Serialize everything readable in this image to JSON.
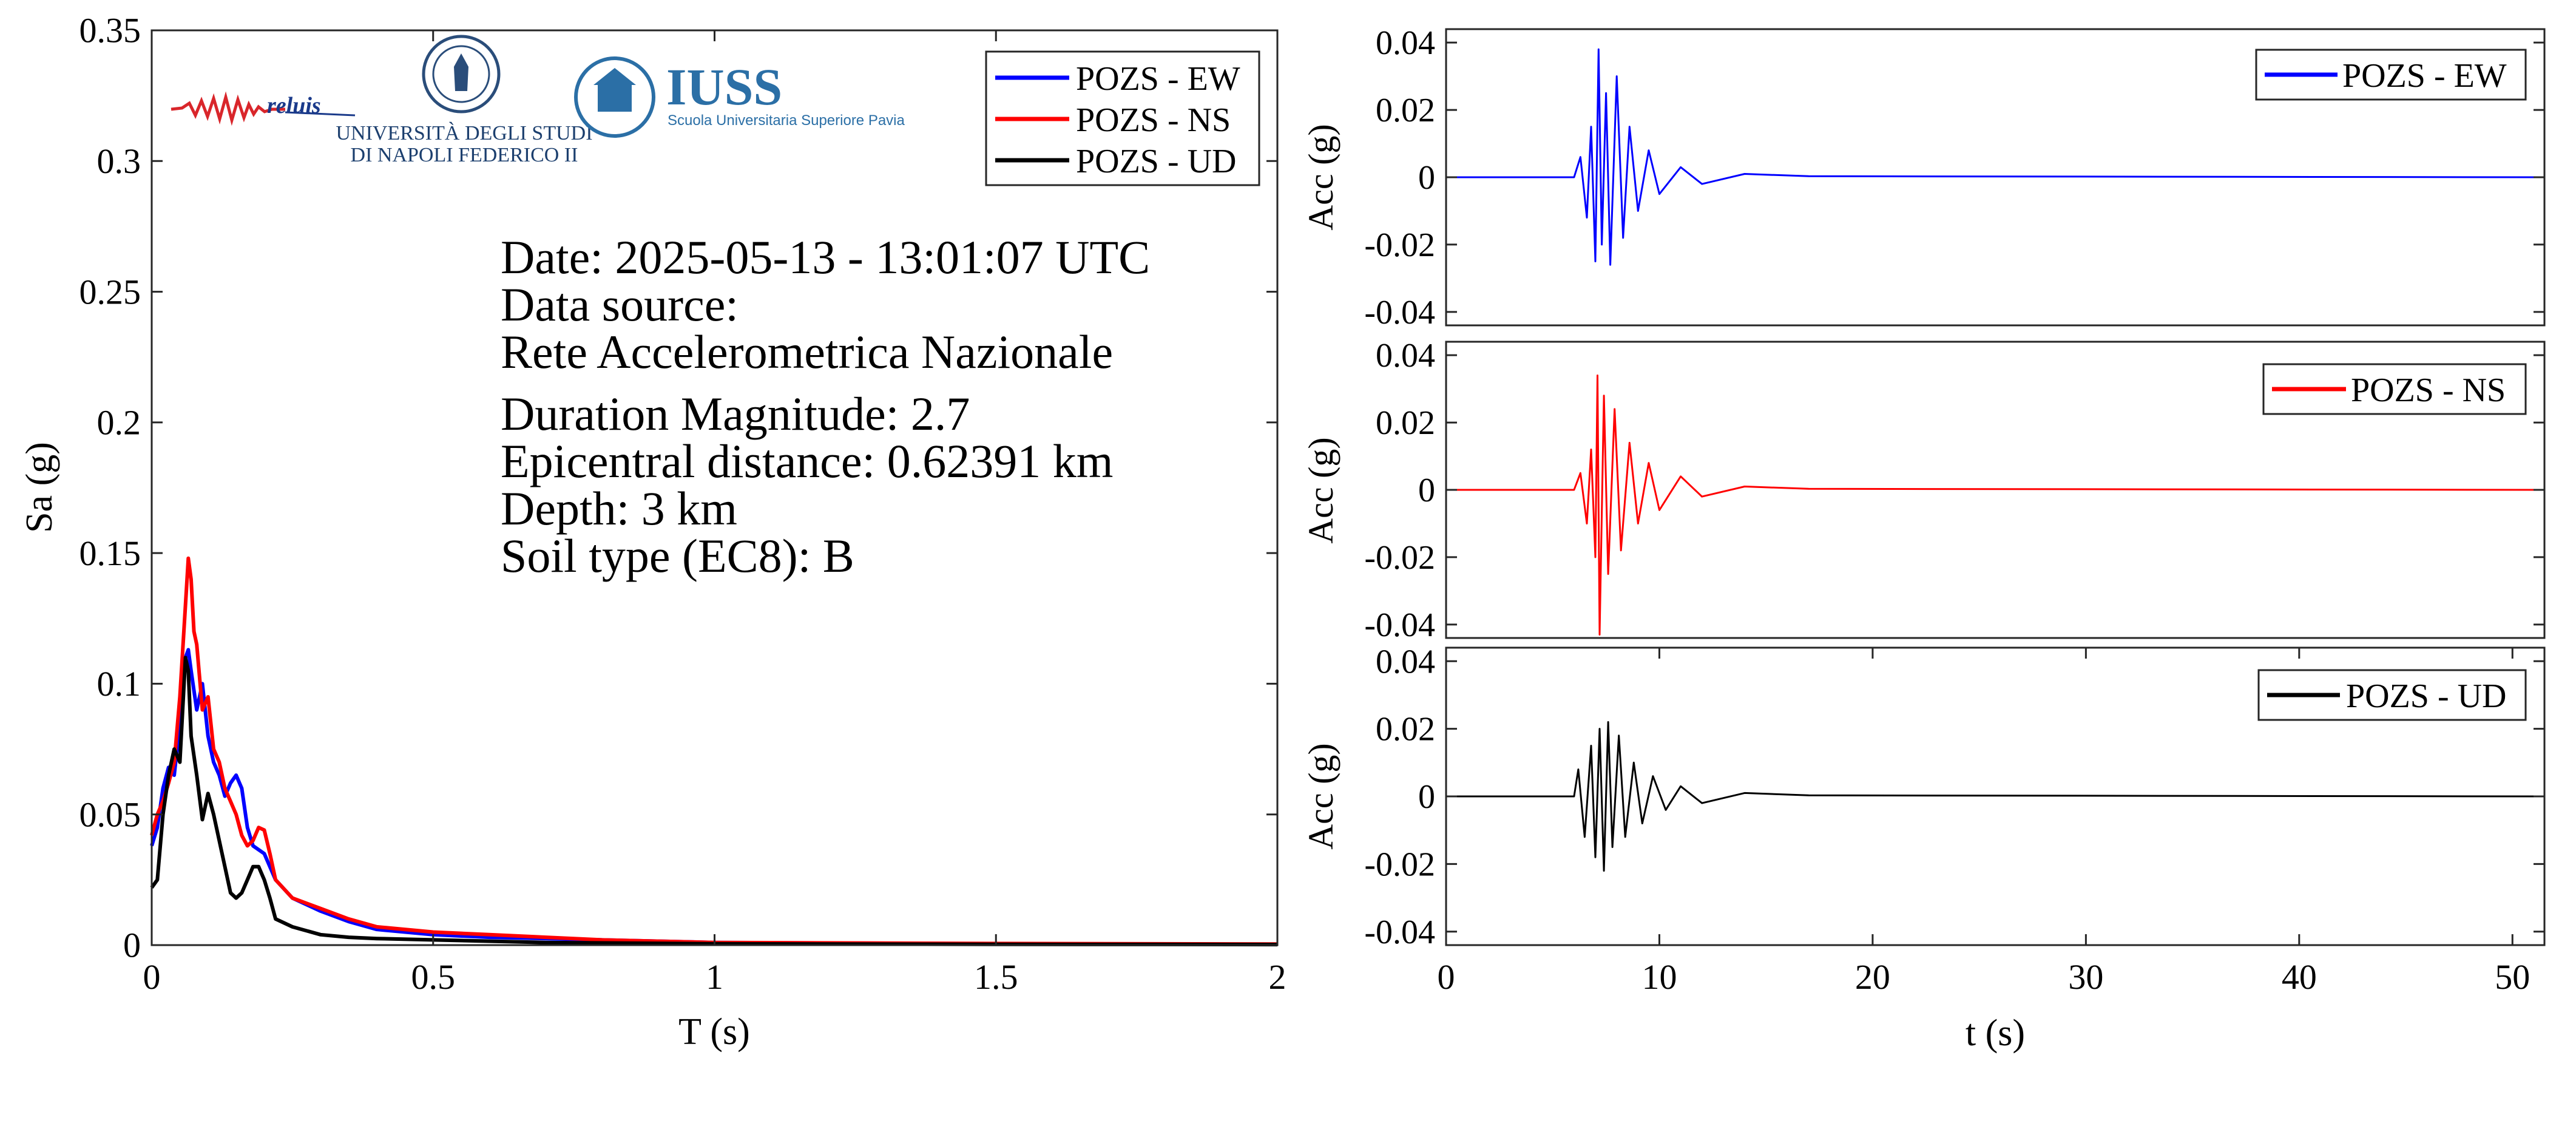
{
  "colors": {
    "ew": "#0000ff",
    "ns": "#ff0000",
    "ud": "#000000"
  },
  "logos": {
    "reluis": "reluis",
    "unina_line1": "UNIVERSITÀ DEGLI STUDI",
    "unina_line2": "DI NAPOLI FEDERICO II",
    "iuss_title": "IUSS",
    "iuss_subtitle": "Scuola Universitaria Superiore Pavia"
  },
  "info": [
    "Date: 2025-05-13 - 13:01:07 UTC",
    "Data source:",
    "Rete Accelerometrica Nazionale",
    "Duration Magnitude: 2.7",
    "Epicentral distance: 0.62391 km",
    "Depth: 3 km",
    "Soil type (EC8): B"
  ],
  "chart_data": [
    {
      "type": "line",
      "xlabel": "T (s)",
      "ylabel": "Sa (g)",
      "xlim": [
        0,
        2
      ],
      "ylim": [
        0,
        0.35
      ],
      "xticks": [
        0,
        0.5,
        1,
        1.5,
        2
      ],
      "xtick_labels": [
        "0",
        "0.5",
        "1",
        "1.5",
        "2"
      ],
      "yticks": [
        0,
        0.05,
        0.1,
        0.15,
        0.2,
        0.25,
        0.3,
        0.35
      ],
      "ytick_labels": [
        "0",
        "0.05",
        "0.1",
        "0.15",
        "0.2",
        "0.25",
        "0.3",
        "0.35"
      ],
      "legend_position": "top-right",
      "series": [
        {
          "name": "POZS - EW",
          "color": "#0000ff",
          "x": [
            0,
            0.01,
            0.02,
            0.03,
            0.04,
            0.05,
            0.06,
            0.065,
            0.07,
            0.08,
            0.09,
            0.1,
            0.11,
            0.12,
            0.13,
            0.14,
            0.15,
            0.16,
            0.17,
            0.18,
            0.2,
            0.22,
            0.25,
            0.3,
            0.35,
            0.4,
            0.5,
            0.6,
            0.8,
            1.0,
            1.5,
            2.0
          ],
          "y": [
            0.038,
            0.045,
            0.06,
            0.068,
            0.065,
            0.085,
            0.11,
            0.113,
            0.105,
            0.09,
            0.1,
            0.08,
            0.07,
            0.065,
            0.057,
            0.062,
            0.065,
            0.06,
            0.045,
            0.038,
            0.035,
            0.025,
            0.018,
            0.013,
            0.009,
            0.006,
            0.004,
            0.003,
            0.002,
            0.001,
            0.0005,
            0.0003
          ]
        },
        {
          "name": "POZS - NS",
          "color": "#ff0000",
          "x": [
            0,
            0.01,
            0.02,
            0.03,
            0.04,
            0.05,
            0.06,
            0.065,
            0.07,
            0.075,
            0.08,
            0.09,
            0.1,
            0.11,
            0.12,
            0.13,
            0.14,
            0.15,
            0.16,
            0.17,
            0.18,
            0.19,
            0.2,
            0.21,
            0.22,
            0.25,
            0.3,
            0.35,
            0.4,
            0.5,
            0.6,
            0.8,
            1.0,
            1.5,
            2.0
          ],
          "y": [
            0.042,
            0.05,
            0.055,
            0.062,
            0.07,
            0.095,
            0.13,
            0.148,
            0.14,
            0.12,
            0.115,
            0.09,
            0.095,
            0.075,
            0.07,
            0.06,
            0.055,
            0.05,
            0.042,
            0.038,
            0.04,
            0.045,
            0.044,
            0.035,
            0.025,
            0.018,
            0.014,
            0.01,
            0.007,
            0.005,
            0.004,
            0.002,
            0.001,
            0.0006,
            0.0004
          ]
        },
        {
          "name": "POZS - UD",
          "color": "#000000",
          "x": [
            0,
            0.01,
            0.02,
            0.03,
            0.04,
            0.05,
            0.055,
            0.06,
            0.065,
            0.07,
            0.08,
            0.09,
            0.1,
            0.11,
            0.12,
            0.13,
            0.14,
            0.15,
            0.16,
            0.17,
            0.18,
            0.19,
            0.2,
            0.21,
            0.22,
            0.25,
            0.3,
            0.35,
            0.4,
            0.5,
            0.7,
            1.0,
            1.5,
            2.0
          ],
          "y": [
            0.022,
            0.025,
            0.05,
            0.065,
            0.075,
            0.07,
            0.09,
            0.11,
            0.105,
            0.08,
            0.065,
            0.048,
            0.058,
            0.05,
            0.04,
            0.03,
            0.02,
            0.018,
            0.02,
            0.025,
            0.03,
            0.03,
            0.025,
            0.018,
            0.01,
            0.007,
            0.004,
            0.003,
            0.0025,
            0.002,
            0.001,
            0.0005,
            0.0003,
            0.0002
          ]
        }
      ]
    },
    {
      "type": "line",
      "xlabel": "",
      "ylabel": "Acc (g)",
      "xlim": [
        0,
        51.5
      ],
      "ylim": [
        -0.044,
        0.044
      ],
      "yticks": [
        -0.04,
        -0.02,
        0,
        0.02,
        0.04
      ],
      "ytick_labels": [
        "-0.04",
        "-0.02",
        "0",
        "0.02",
        "0.04"
      ],
      "legend_position": "top-right",
      "series": [
        {
          "name": "POZS - EW",
          "color": "#0000ff",
          "x": [
            0,
            6.0,
            6.3,
            6.6,
            6.8,
            7.0,
            7.15,
            7.3,
            7.5,
            7.7,
            8.0,
            8.3,
            8.6,
            9.0,
            9.5,
            10.0,
            11.0,
            12.0,
            14.0,
            17.0,
            51.5
          ],
          "y": [
            0,
            0,
            0.006,
            -0.012,
            0.015,
            -0.025,
            0.038,
            -0.02,
            0.025,
            -0.026,
            0.03,
            -0.018,
            0.015,
            -0.01,
            0.008,
            -0.005,
            0.003,
            -0.002,
            0.001,
            0.0003,
            0
          ]
        }
      ]
    },
    {
      "type": "line",
      "xlabel": "",
      "ylabel": "Acc (g)",
      "xlim": [
        0,
        51.5
      ],
      "ylim": [
        -0.044,
        0.044
      ],
      "yticks": [
        -0.04,
        -0.02,
        0,
        0.02,
        0.04
      ],
      "ytick_labels": [
        "-0.04",
        "-0.02",
        "0",
        "0.02",
        "0.04"
      ],
      "legend_position": "top-right",
      "series": [
        {
          "name": "POZS - NS",
          "color": "#ff0000",
          "x": [
            0,
            6.0,
            6.3,
            6.6,
            6.8,
            7.0,
            7.1,
            7.2,
            7.4,
            7.6,
            7.9,
            8.2,
            8.6,
            9.0,
            9.5,
            10.0,
            11.0,
            12.0,
            14.0,
            17.0,
            51.5
          ],
          "y": [
            0,
            0,
            0.005,
            -0.01,
            0.012,
            -0.02,
            0.034,
            -0.043,
            0.028,
            -0.025,
            0.024,
            -0.018,
            0.014,
            -0.01,
            0.008,
            -0.006,
            0.004,
            -0.002,
            0.001,
            0.0003,
            0
          ]
        }
      ]
    },
    {
      "type": "line",
      "xlabel": "t (s)",
      "ylabel": "Acc (g)",
      "xlim": [
        0,
        51.5
      ],
      "ylim": [
        -0.044,
        0.044
      ],
      "xticks": [
        0,
        10,
        20,
        30,
        40,
        50
      ],
      "xtick_labels": [
        "0",
        "10",
        "20",
        "30",
        "40",
        "50"
      ],
      "yticks": [
        -0.04,
        -0.02,
        0,
        0.02,
        0.04
      ],
      "ytick_labels": [
        "-0.04",
        "-0.02",
        "0",
        "0.02",
        "0.04"
      ],
      "legend_position": "top-right",
      "series": [
        {
          "name": "POZS - UD",
          "color": "#000000",
          "x": [
            0,
            6.0,
            6.2,
            6.5,
            6.8,
            7.0,
            7.2,
            7.4,
            7.6,
            7.8,
            8.1,
            8.4,
            8.8,
            9.2,
            9.7,
            10.3,
            11.0,
            12.0,
            14.0,
            17.0,
            51.5
          ],
          "y": [
            0,
            0,
            0.008,
            -0.012,
            0.015,
            -0.018,
            0.02,
            -0.022,
            0.022,
            -0.015,
            0.018,
            -0.012,
            0.01,
            -0.008,
            0.006,
            -0.004,
            0.003,
            -0.002,
            0.001,
            0.0003,
            0
          ]
        }
      ]
    }
  ]
}
